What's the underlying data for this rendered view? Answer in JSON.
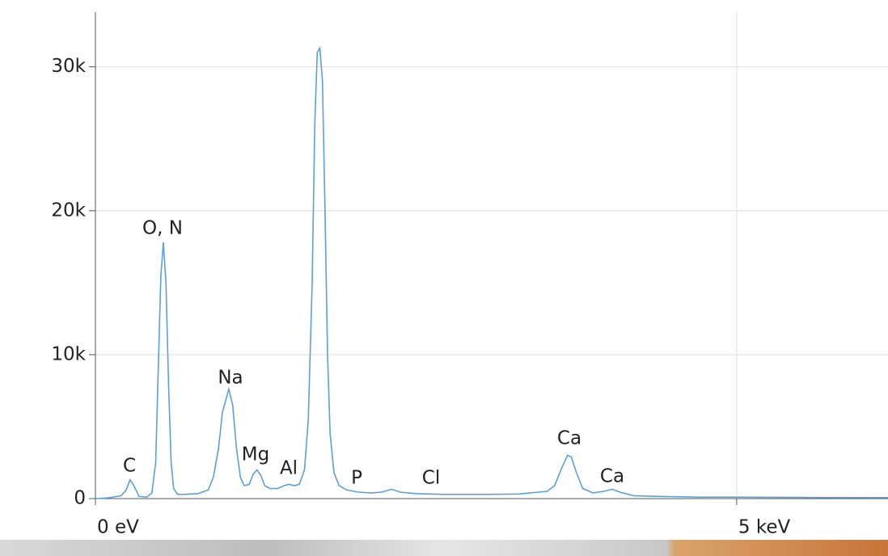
{
  "chart_data": {
    "type": "line",
    "x": [
      0,
      100,
      200,
      240,
      270,
      300,
      340,
      400,
      440,
      470,
      490,
      510,
      530,
      550,
      570,
      590,
      610,
      640,
      700,
      800,
      880,
      920,
      960,
      990,
      1040,
      1070,
      1100,
      1130,
      1160,
      1200,
      1230,
      1260,
      1290,
      1320,
      1360,
      1420,
      1470,
      1510,
      1550,
      1590,
      1630,
      1660,
      1690,
      1710,
      1730,
      1750,
      1770,
      1790,
      1810,
      1830,
      1860,
      1900,
      1960,
      2050,
      2150,
      2230,
      2310,
      2380,
      2500,
      2700,
      2900,
      3100,
      3300,
      3450,
      3520,
      3580,
      3630,
      3680,
      3710,
      3750,
      3800,
      3880,
      3960,
      4030,
      4090,
      4200,
      4400,
      4700,
      5000,
      5500,
      6180
    ],
    "series": [
      {
        "color": "#5aa0dc",
        "values": [
          0,
          50,
          200,
          600,
          1300,
          900,
          150,
          100,
          400,
          2500,
          9000,
          15500,
          17800,
          15000,
          8000,
          2500,
          700,
          300,
          300,
          350,
          600,
          1500,
          3500,
          6000,
          7600,
          6500,
          3500,
          1500,
          900,
          1000,
          1700,
          2000,
          1600,
          900,
          700,
          700,
          900,
          1000,
          900,
          1000,
          2000,
          5500,
          15000,
          26000,
          31000,
          31300,
          29000,
          20000,
          10000,
          4500,
          1800,
          900,
          600,
          450,
          400,
          450,
          650,
          450,
          350,
          300,
          300,
          300,
          320,
          450,
          500,
          900,
          2000,
          3000,
          2900,
          1800,
          700,
          400,
          500,
          650,
          450,
          200,
          150,
          100,
          100,
          80,
          70
        ]
      }
    ],
    "xlim": [
      0,
      6180
    ],
    "xticks": [
      {
        "value": 0,
        "label": "0 eV"
      },
      {
        "value": 5000,
        "label": "5 keV"
      }
    ],
    "ylim": [
      0,
      33800
    ],
    "yticks": [
      {
        "value": 0,
        "label": "0"
      },
      {
        "value": 10000,
        "label": "10k"
      },
      {
        "value": 20000,
        "label": "20k"
      },
      {
        "value": 30000,
        "label": "30k"
      }
    ],
    "grid": true,
    "annotations": [
      "C",
      "O, N",
      "Na",
      "Mg",
      "Al",
      "P",
      "Cl",
      "Ca",
      "Ca"
    ]
  }
}
